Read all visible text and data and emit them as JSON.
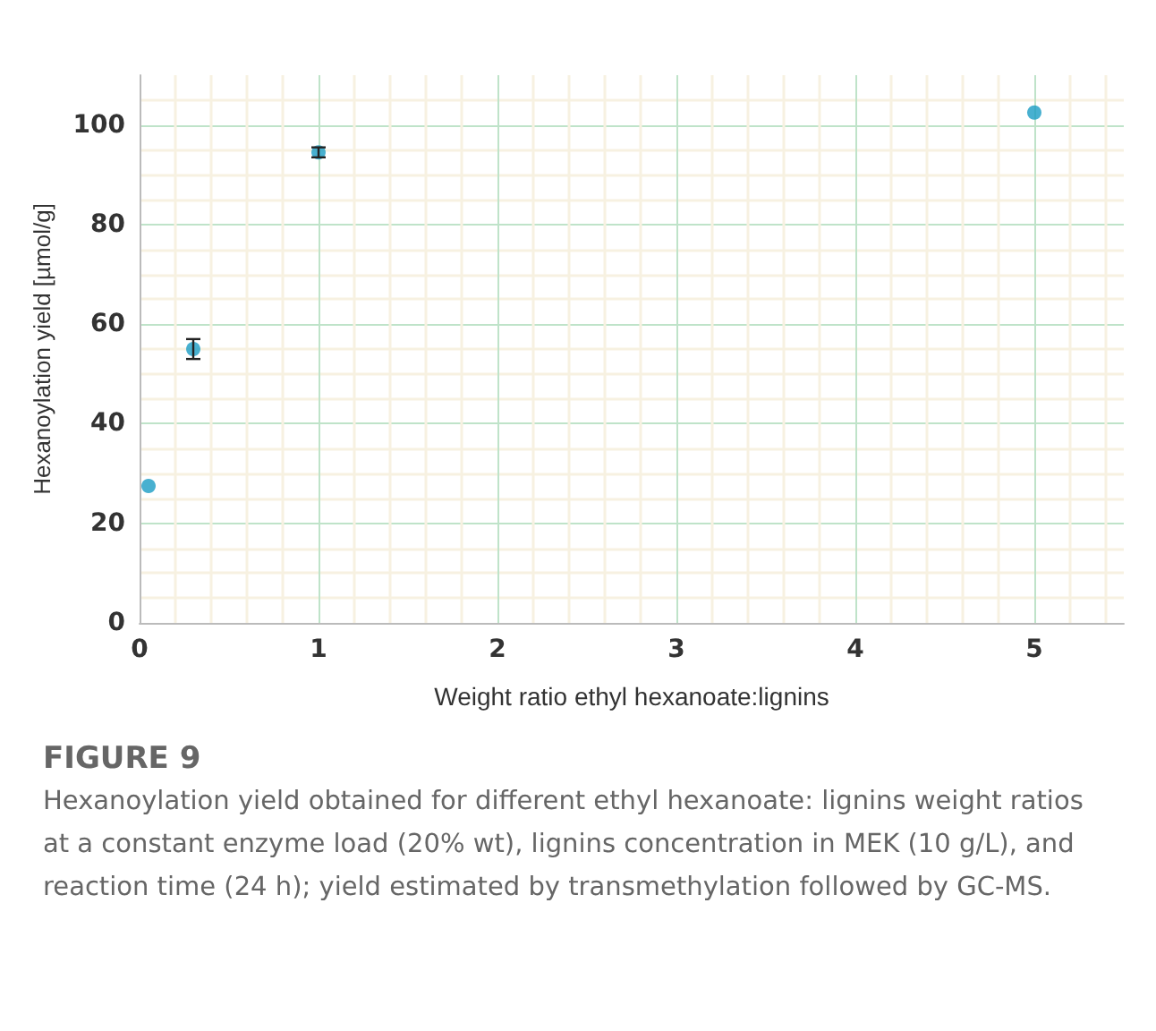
{
  "chart_data": {
    "type": "scatter",
    "title": "FIGURE 9",
    "annotations": [
      "Hexanoylation yield obtained for different ethyl hexanoate: lignins weight ratios at a constant enzyme load (20% wt), lignins concentration in MEK (10 g/L), and reaction time (24 h); yield estimated by transmethylation followed by GC-MS."
    ],
    "xlabel": "Weight ratio ethyl hexanoate:lignins",
    "ylabel": "Hexanoylation yield [µmol/g]",
    "x": [
      0.05,
      0.3,
      1,
      5
    ],
    "series": [
      {
        "color": "#1a9cc4",
        "values": [
          27.5,
          55,
          94.5,
          102.5
        ],
        "errors": [
          null,
          2,
          1,
          null
        ]
      }
    ],
    "xlim": [
      0,
      5.5
    ],
    "xticks": [
      0,
      1,
      2,
      3,
      4,
      5
    ],
    "ylim": [
      0,
      110
    ],
    "yticks": [
      0,
      20,
      40,
      60,
      80,
      100
    ],
    "grid": true,
    "marker": "circle"
  }
}
